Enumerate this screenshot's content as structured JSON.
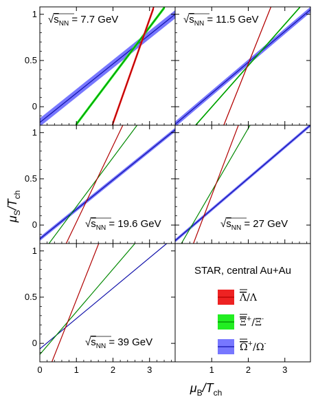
{
  "chart_data": {
    "type": "line",
    "xlabel": "μ_B/T_ch",
    "ylabel": "μ_S/T_ch",
    "xlim": [
      0,
      3.7
    ],
    "ylim": [
      -0.2,
      1.08
    ],
    "x_ticks": [
      "0",
      "1",
      "2",
      "3"
    ],
    "y_ticks": [
      "0",
      "0.5",
      "1"
    ],
    "legend": {
      "title": "STAR, central Au+Au",
      "placement": "bottom-right panel",
      "entries": [
        {
          "key": "lambda",
          "color": "#ee2222",
          "line": "#b00000",
          "label_base": "Λ",
          "label_sep": "/",
          "label_denom": "Λ",
          "sup": ""
        },
        {
          "key": "xi",
          "color": "#22ee22",
          "line": "#008800",
          "label_base": "Ξ",
          "label_sep": "/",
          "label_denom": "Ξ",
          "sup": "+",
          "sup_denom": "-"
        },
        {
          "key": "omega",
          "color": "#7777ff",
          "line": "#1010aa",
          "label_base": "Ω",
          "label_sep": "/",
          "label_denom": "Ω",
          "sup": "+",
          "sup_denom": "-"
        }
      ]
    },
    "panels": [
      {
        "label_prefix": "√",
        "label_s": "s",
        "label_sub": "NN",
        "label_value": " = 7.7 GeV",
        "label_pos": "top-left",
        "series": {
          "lambda": {
            "p1": [
              1.98,
              -0.2
            ],
            "p2": [
              3.12,
              1.08
            ],
            "band": 0.03
          },
          "xi": {
            "p1": [
              0.98,
              -0.2
            ],
            "p2": [
              3.42,
              1.08
            ],
            "band": 0.02
          },
          "omega": {
            "p1": [
              0.0,
              -0.17
            ],
            "p2": [
              3.7,
              1.0
            ],
            "band": 0.045
          }
        }
      },
      {
        "label_prefix": "√",
        "label_s": "s",
        "label_sub": "NN",
        "label_value": " = 11.5 GeV",
        "label_pos": "top-left",
        "series": {
          "lambda": {
            "p1": [
              1.33,
              -0.2
            ],
            "p2": [
              2.62,
              1.08
            ],
            "band": 0.01
          },
          "xi": {
            "p1": [
              0.56,
              -0.2
            ],
            "p2": [
              3.42,
              1.08
            ],
            "band": 0.01
          },
          "omega": {
            "p1": [
              0.0,
              -0.19
            ],
            "p2": [
              3.7,
              1.05
            ],
            "band": 0.03
          }
        }
      },
      {
        "label_prefix": "√",
        "label_s": "s",
        "label_sub": "NN",
        "label_value": " = 19.6 GeV",
        "label_pos": "bottom-right",
        "series": {
          "lambda": {
            "p1": [
              0.72,
              -0.2
            ],
            "p2": [
              2.27,
              1.08
            ],
            "band": 0.0
          },
          "xi": {
            "p1": [
              0.25,
              -0.2
            ],
            "p2": [
              2.66,
              1.08
            ],
            "band": 0.0
          },
          "omega": {
            "p1": [
              0.0,
              -0.15
            ],
            "p2": [
              3.7,
              1.03
            ],
            "band": 0.022
          }
        }
      },
      {
        "label_prefix": "√",
        "label_s": "s",
        "label_sub": "NN",
        "label_value": " = 27 GeV",
        "label_pos": "bottom-right",
        "series": {
          "lambda": {
            "p1": [
              0.5,
              -0.2
            ],
            "p2": [
              1.73,
              1.08
            ],
            "band": 0.0
          },
          "xi": {
            "p1": [
              0.17,
              -0.2
            ],
            "p2": [
              2.05,
              1.08
            ],
            "band": 0.0
          },
          "omega": {
            "p1": [
              0.0,
              -0.17
            ],
            "p2": [
              3.7,
              1.08
            ],
            "band": 0.018
          }
        }
      },
      {
        "label_prefix": "√",
        "label_s": "s",
        "label_sub": "NN",
        "label_value": " = 39 GeV",
        "label_pos": "bottom-right",
        "series": {
          "lambda": {
            "p1": [
              0.33,
              -0.2
            ],
            "p2": [
              1.61,
              1.08
            ],
            "band": 0.0
          },
          "xi": {
            "p1": [
              0.0,
              -0.12
            ],
            "p2": [
              2.6,
              1.08
            ],
            "band": 0.0
          },
          "omega": {
            "p1": [
              0.0,
              -0.06
            ],
            "p2": [
              3.47,
              1.08
            ],
            "band": 0.0
          }
        }
      }
    ]
  }
}
